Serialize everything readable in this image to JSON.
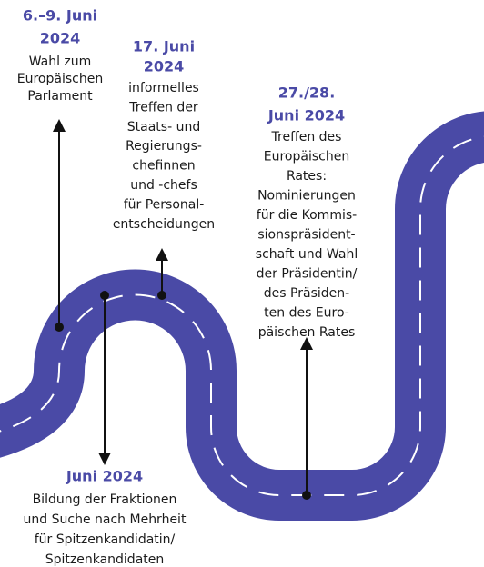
{
  "milestones": [
    {
      "date": [
        "6.–9. Juni",
        "2024"
      ],
      "description": [
        "Wahl zum",
        "Europäischen",
        "Parlament"
      ]
    },
    {
      "date": [
        "17. Juni",
        "2024"
      ],
      "description": [
        "informelles",
        "Treffen der",
        "Staats- und",
        "Regierungs-",
        "chefinnen",
        "und -chefs",
        "für Personal-",
        "entscheidungen"
      ]
    },
    {
      "date": [
        "27./28.",
        "Juni 2024"
      ],
      "description": [
        "Treffen des",
        "Europäischen",
        "Rates:",
        "Nominierungen",
        "für die Kommis-",
        "sionspräsident-",
        "schaft und Wahl",
        "der Präsidentin/",
        "des Präsiden-",
        "ten des Euro-",
        "päischen Rates"
      ]
    },
    {
      "date": [
        "Juni 2024"
      ],
      "description": [
        "Bildung der Fraktionen",
        "und Suche nach Mehrheit",
        "für Spitzenkandidatin/",
        "Spitzenkandidaten"
      ]
    }
  ]
}
